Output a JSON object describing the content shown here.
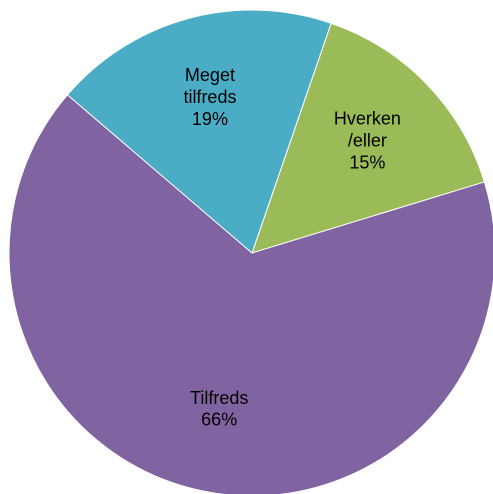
{
  "chart_data": {
    "type": "pie",
    "categories": [
      "Hverken /eller",
      "Tilfreds",
      "Meget tilfreds"
    ],
    "values": [
      15,
      66,
      19
    ],
    "value_labels": [
      "15%",
      "66%",
      "19%"
    ],
    "colors": [
      "#9bbb59",
      "#8064a2",
      "#4bacc6"
    ]
  }
}
